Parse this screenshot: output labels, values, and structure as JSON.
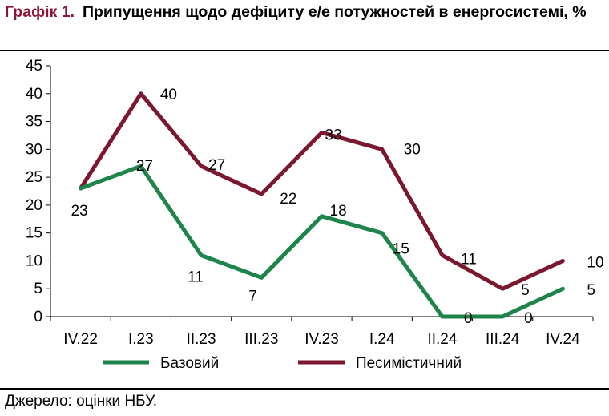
{
  "header": {
    "prefix": "Графік 1.",
    "title": "Припущення щодо дефіциту е/е потужностей в енергосистемі, %"
  },
  "footer": {
    "source": "Джерело: оцінки НБУ."
  },
  "colors": {
    "base": "#1e8449",
    "pessimistic": "#7b1830",
    "axis": "#000000",
    "title_prefix": "#8b1538"
  },
  "chart_data": {
    "type": "line",
    "title": "Припущення щодо дефіциту е/е потужностей в енергосистемі, %",
    "categories": [
      "IV.22",
      "I.23",
      "II.23",
      "III.23",
      "IV.23",
      "I.24",
      "II.24",
      "III.24",
      "IV.24"
    ],
    "series": [
      {
        "name": "Базовий",
        "color": "#1e8449",
        "values": [
          23,
          27,
          11,
          7,
          18,
          15,
          0,
          0,
          5
        ]
      },
      {
        "name": "Песимістичний",
        "color": "#7b1830",
        "values": [
          23,
          40,
          27,
          22,
          33,
          30,
          11,
          5,
          10
        ]
      }
    ],
    "ylim": [
      0,
      45
    ],
    "yticks": [
      0,
      5,
      10,
      15,
      20,
      25,
      30,
      35,
      40,
      45
    ],
    "grid": false,
    "legend": "bottom"
  }
}
